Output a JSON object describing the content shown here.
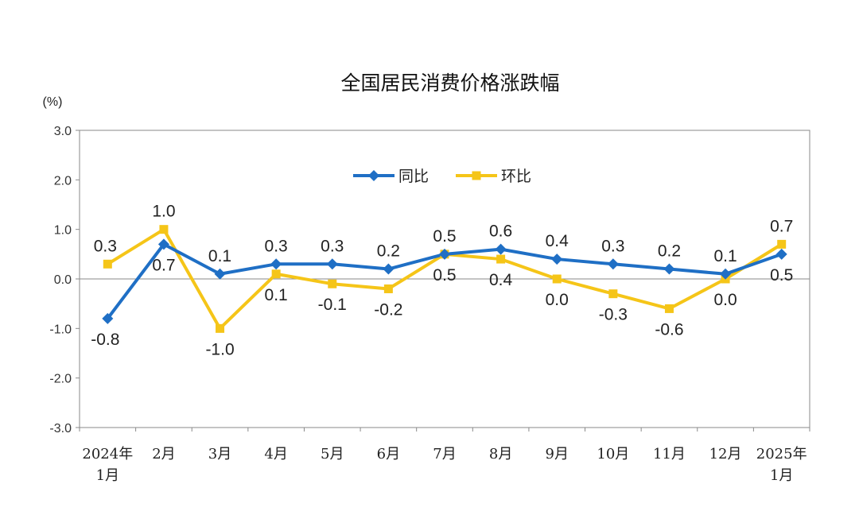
{
  "chart_data": {
    "type": "line",
    "title": "全国居民消费价格涨跌幅",
    "unit_label": "(%)",
    "categories": [
      [
        "2024年",
        "1月"
      ],
      [
        "2月"
      ],
      [
        "3月"
      ],
      [
        "4月"
      ],
      [
        "5月"
      ],
      [
        "6月"
      ],
      [
        "7月"
      ],
      [
        "8月"
      ],
      [
        "9月"
      ],
      [
        "10月"
      ],
      [
        "11月"
      ],
      [
        "12月"
      ],
      [
        "2025年",
        "1月"
      ]
    ],
    "ylim": [
      -3.0,
      3.0
    ],
    "yticks": [
      "3.0",
      "2.0",
      "1.0",
      "0.0",
      "-1.0",
      "-2.0",
      "-3.0"
    ],
    "ytick_values": [
      3.0,
      2.0,
      1.0,
      0.0,
      -1.0,
      -2.0,
      -3.0
    ],
    "grid": false,
    "legend_position": "top-center",
    "series": [
      {
        "name": "同比",
        "color": "#1f6fc5",
        "marker": "diamond",
        "values": [
          -0.8,
          0.7,
          0.1,
          0.3,
          0.3,
          0.2,
          0.5,
          0.6,
          0.4,
          0.3,
          0.2,
          0.1,
          0.5
        ],
        "labels": [
          "-0.8",
          "0.7",
          "0.1",
          "0.3",
          "0.3",
          "0.2",
          "0.5",
          "0.6",
          "0.4",
          "0.3",
          "0.2",
          "0.1",
          "0.5"
        ]
      },
      {
        "name": "环比",
        "color": "#f5c518",
        "marker": "square",
        "values": [
          0.3,
          1.0,
          -1.0,
          0.1,
          -0.1,
          -0.2,
          0.5,
          0.4,
          0.0,
          -0.3,
          -0.6,
          0.0,
          0.7
        ],
        "labels": [
          "0.3",
          "1.0",
          "-1.0",
          "0.1",
          "-0.1",
          "-0.2",
          "0.5",
          "0.4",
          "0.0",
          "-0.3",
          "-0.6",
          "0.0",
          "0.7"
        ]
      }
    ]
  }
}
